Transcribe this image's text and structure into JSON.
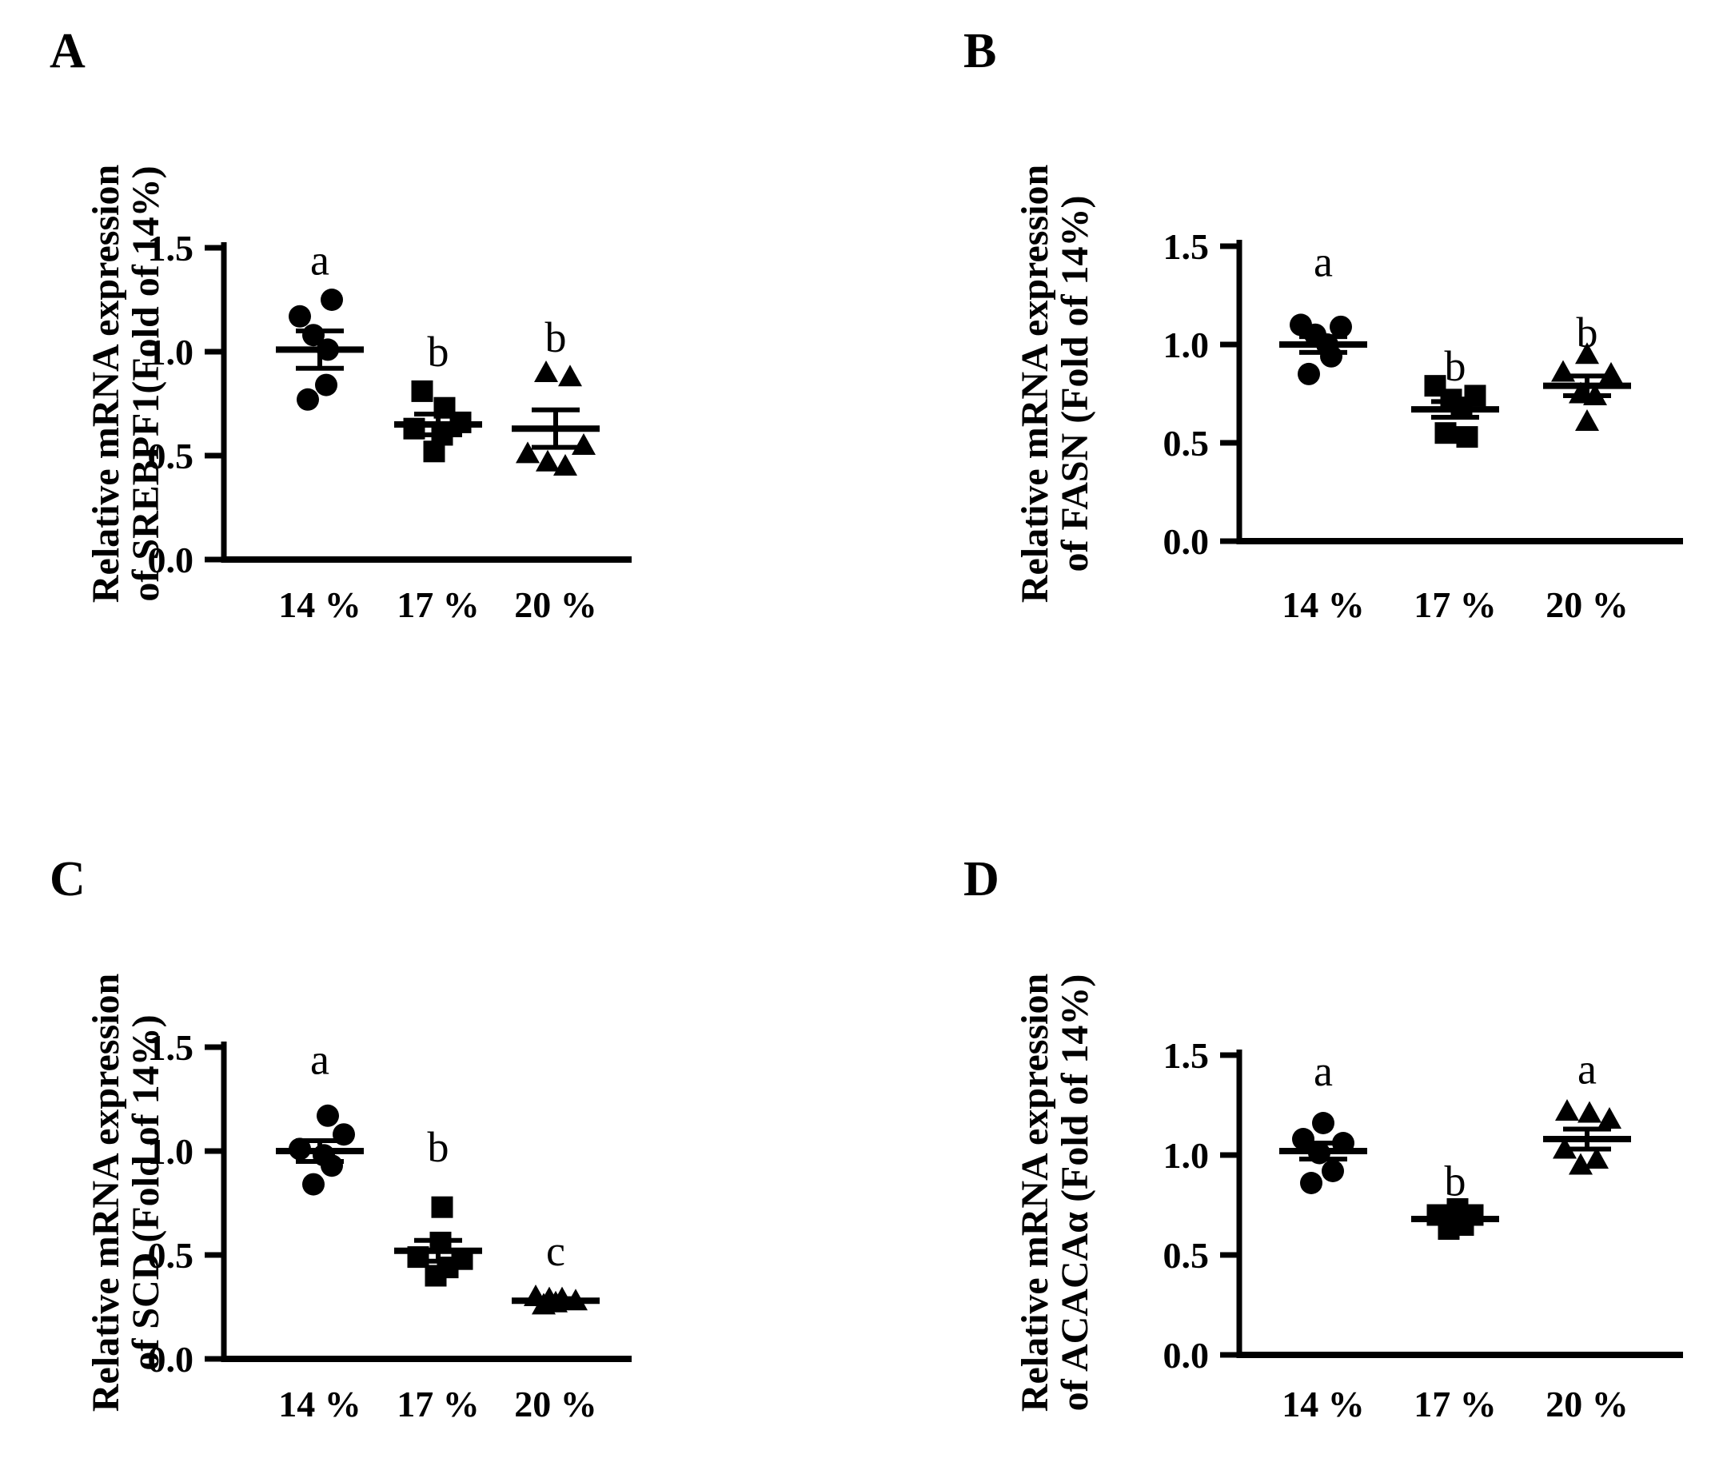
{
  "figure": {
    "background": "#ffffff",
    "ink_color": "#000000",
    "description_visible_text_only": true
  },
  "chart_data": [
    {
      "panel": "A",
      "type": "scatter",
      "gene": "SREBPF1",
      "ylabel_line1": "Relative mRNA expression",
      "ylabel_line2": "of SREBPF1(Fold of 14%)",
      "xlabel": "",
      "ylim": [
        0.0,
        1.5
      ],
      "ytick_labels": [
        "0.0",
        "0.5",
        "1.0",
        "1.5"
      ],
      "categories": [
        "14 %",
        "17 %",
        "20 %"
      ],
      "legend": "none",
      "grid": false,
      "groups": [
        {
          "label": "14 %",
          "marker": "circle",
          "letter": "a",
          "letter_y": 1.44,
          "mean": 1.01,
          "sem": 0.09,
          "points": [
            [
              15,
              1.25
            ],
            [
              -25,
              1.17
            ],
            [
              -8,
              1.08
            ],
            [
              10,
              1.01
            ],
            [
              8,
              0.84
            ],
            [
              -15,
              0.77
            ]
          ]
        },
        {
          "label": "17 %",
          "marker": "square",
          "letter": "b",
          "letter_y": 1.0,
          "mean": 0.65,
          "sem": 0.05,
          "points": [
            [
              -20,
              0.81
            ],
            [
              8,
              0.73
            ],
            [
              28,
              0.66
            ],
            [
              -30,
              0.63
            ],
            [
              5,
              0.6
            ],
            [
              -5,
              0.52
            ]
          ]
        },
        {
          "label": "20 %",
          "marker": "triangle",
          "letter": "b",
          "letter_y": 1.07,
          "mean": 0.63,
          "sem": 0.09,
          "points": [
            [
              -12,
              0.9
            ],
            [
              18,
              0.88
            ],
            [
              35,
              0.55
            ],
            [
              -35,
              0.51
            ],
            [
              -10,
              0.47
            ],
            [
              12,
              0.45
            ]
          ]
        }
      ]
    },
    {
      "panel": "B",
      "type": "scatter",
      "gene": "FASN",
      "ylabel_line1": "Relative mRNA expression",
      "ylabel_line2": "of FASN (Fold of 14%)",
      "xlabel": "",
      "ylim": [
        0.0,
        1.5
      ],
      "ytick_labels": [
        "0.0",
        "0.5",
        "1.0",
        "1.5"
      ],
      "categories": [
        "14 %",
        "17 %",
        "20 %"
      ],
      "legend": "none",
      "grid": false,
      "groups": [
        {
          "label": "14 %",
          "marker": "circle",
          "letter": "a",
          "letter_y": 1.42,
          "mean": 1.0,
          "sem": 0.04,
          "points": [
            [
              -28,
              1.1
            ],
            [
              22,
              1.09
            ],
            [
              -10,
              1.05
            ],
            [
              5,
              1.0
            ],
            [
              10,
              0.94
            ],
            [
              -18,
              0.85
            ]
          ]
        },
        {
          "label": "17 %",
          "marker": "square",
          "letter": "b",
          "letter_y": 0.89,
          "mean": 0.67,
          "sem": 0.04,
          "points": [
            [
              -25,
              0.79
            ],
            [
              25,
              0.74
            ],
            [
              -5,
              0.72
            ],
            [
              8,
              0.68
            ],
            [
              -12,
              0.55
            ],
            [
              15,
              0.53
            ]
          ]
        },
        {
          "label": "20 %",
          "marker": "triangle",
          "letter": "b",
          "letter_y": 1.06,
          "mean": 0.79,
          "sem": 0.05,
          "points": [
            [
              0,
              0.95
            ],
            [
              -30,
              0.86
            ],
            [
              30,
              0.85
            ],
            [
              -8,
              0.75
            ],
            [
              10,
              0.74
            ],
            [
              0,
              0.61
            ]
          ]
        }
      ]
    },
    {
      "panel": "C",
      "type": "scatter",
      "gene": "SCD",
      "ylabel_line1": "Relative mRNA expression",
      "ylabel_line2": "of SCD (Fold of 14%)",
      "xlabel": "",
      "ylim": [
        0.0,
        1.5
      ],
      "ytick_labels": [
        "0.0",
        "0.5",
        "1.0",
        "1.5"
      ],
      "categories": [
        "14 %",
        "17 %",
        "20 %"
      ],
      "legend": "none",
      "grid": false,
      "groups": [
        {
          "label": "14 %",
          "marker": "circle",
          "letter": "a",
          "letter_y": 1.44,
          "mean": 1.0,
          "sem": 0.05,
          "points": [
            [
              10,
              1.17
            ],
            [
              30,
              1.08
            ],
            [
              -25,
              1.01
            ],
            [
              5,
              0.98
            ],
            [
              15,
              0.93
            ],
            [
              -8,
              0.84
            ]
          ]
        },
        {
          "label": "17 %",
          "marker": "square",
          "letter": "b",
          "letter_y": 1.02,
          "mean": 0.52,
          "sem": 0.05,
          "points": [
            [
              5,
              0.73
            ],
            [
              3,
              0.56
            ],
            [
              -25,
              0.49
            ],
            [
              30,
              0.48
            ],
            [
              12,
              0.44
            ],
            [
              -3,
              0.4
            ]
          ]
        },
        {
          "label": "20 %",
          "marker": "triangle",
          "letter": "c",
          "letter_y": 0.52,
          "mean": 0.28,
          "sem": 0.01,
          "points": [
            [
              -25,
              0.3
            ],
            [
              -8,
              0.29
            ],
            [
              8,
              0.29
            ],
            [
              25,
              0.28
            ],
            [
              0,
              0.27
            ],
            [
              -15,
              0.26
            ]
          ]
        }
      ]
    },
    {
      "panel": "D",
      "type": "scatter",
      "gene": "ACACAα",
      "ylabel_line1": "Relative mRNA expression",
      "ylabel_line2": "of ACACAα (Fold of 14%)",
      "xlabel": "",
      "ylim": [
        0.0,
        1.5
      ],
      "ytick_labels": [
        "0.0",
        "0.5",
        "1.0",
        "1.5"
      ],
      "categories": [
        "14 %",
        "17 %",
        "20 %"
      ],
      "legend": "none",
      "grid": false,
      "groups": [
        {
          "label": "14 %",
          "marker": "circle",
          "letter": "a",
          "letter_y": 1.42,
          "mean": 1.02,
          "sem": 0.04,
          "points": [
            [
              0,
              1.16
            ],
            [
              -25,
              1.08
            ],
            [
              25,
              1.06
            ],
            [
              -5,
              1.01
            ],
            [
              12,
              0.92
            ],
            [
              -15,
              0.86
            ]
          ]
        },
        {
          "label": "17 %",
          "marker": "square",
          "letter": "b",
          "letter_y": 0.87,
          "mean": 0.68,
          "sem": 0.02,
          "points": [
            [
              3,
              0.73
            ],
            [
              -22,
              0.7
            ],
            [
              22,
              0.7
            ],
            [
              -5,
              0.67
            ],
            [
              10,
              0.65
            ],
            [
              -8,
              0.63
            ]
          ]
        },
        {
          "label": "20 %",
          "marker": "triangle",
          "letter": "a",
          "letter_y": 1.43,
          "mean": 1.08,
          "sem": 0.05,
          "points": [
            [
              -25,
              1.22
            ],
            [
              3,
              1.21
            ],
            [
              28,
              1.18
            ],
            [
              -28,
              1.03
            ],
            [
              12,
              0.98
            ],
            [
              -8,
              0.95
            ]
          ]
        }
      ]
    }
  ]
}
